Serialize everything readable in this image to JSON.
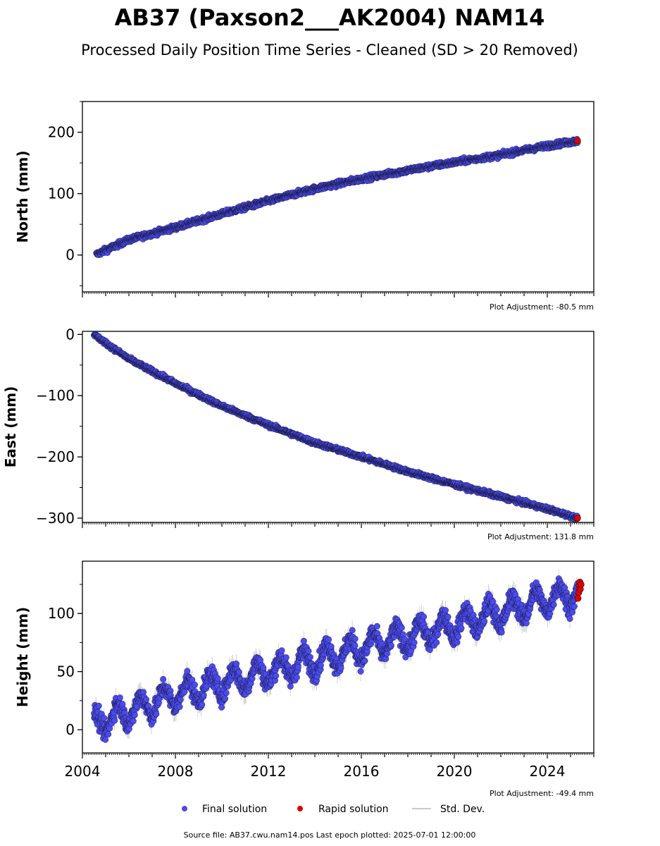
{
  "title": "AB37 (Paxson2___AK2004) NAM14",
  "subtitle": "Processed Daily Position Time Series - Cleaned (SD > 20 Removed)",
  "colors": {
    "final": "#4b4bef",
    "final_edge": "#1a1a40",
    "rapid": "#e00000",
    "stddev": "#c8c8c8",
    "axis": "#000000"
  },
  "legend": {
    "final": "Final solution",
    "rapid": "Rapid solution",
    "stddev": "Std. Dev."
  },
  "footer": "Source file: AB37.cwu.nam14.pos  Last epoch plotted: 2025-07-01 12:00:00",
  "chart_data": [
    {
      "type": "scatter",
      "ylabel": "North (mm)",
      "adjustment": "Plot Adjustment: -80.5 mm",
      "xlim": [
        2004.0,
        2026.0
      ],
      "ylim": [
        -60,
        250
      ],
      "yticks": [
        0,
        100,
        200
      ],
      "ytick_labels": [
        "0",
        "100",
        "200"
      ],
      "final_trend": [
        [
          2004.6,
          1
        ],
        [
          2006,
          25
        ],
        [
          2008,
          45
        ],
        [
          2010,
          67
        ],
        [
          2012,
          88
        ],
        [
          2014,
          108
        ],
        [
          2016,
          124
        ],
        [
          2018,
          138
        ],
        [
          2020,
          151
        ],
        [
          2022,
          163
        ],
        [
          2024,
          178
        ],
        [
          2025.3,
          186
        ]
      ],
      "noise_mm": 3,
      "rapid": {
        "x": [
          2025.3
        ],
        "y": [
          186
        ]
      }
    },
    {
      "type": "scatter",
      "ylabel": "East (mm)",
      "adjustment": "Plot Adjustment: 131.8 mm",
      "xlim": [
        2004.0,
        2026.0
      ],
      "ylim": [
        -307,
        5
      ],
      "yticks": [
        -300,
        -200,
        -100,
        0
      ],
      "ytick_labels": [
        "−300",
        "−200",
        "−100",
        "0"
      ],
      "final_trend": [
        [
          2004.5,
          0
        ],
        [
          2005,
          -14
        ],
        [
          2006,
          -40
        ],
        [
          2008,
          -80
        ],
        [
          2010,
          -117
        ],
        [
          2012,
          -148
        ],
        [
          2014,
          -177
        ],
        [
          2016,
          -200
        ],
        [
          2018,
          -224
        ],
        [
          2020,
          -245
        ],
        [
          2022,
          -265
        ],
        [
          2024,
          -285
        ],
        [
          2025.3,
          -300
        ]
      ],
      "noise_mm": 2.5,
      "rapid": {
        "x": [
          2025.3
        ],
        "y": [
          -300
        ]
      }
    },
    {
      "type": "scatter",
      "ylabel": "Height (mm)",
      "adjustment": "Plot Adjustment: -49.4 mm",
      "xlim": [
        2004.0,
        2026.0
      ],
      "ylim": [
        -20,
        145
      ],
      "yticks": [
        0,
        50,
        100
      ],
      "ytick_labels": [
        "0",
        "50",
        "100"
      ],
      "xticks": [
        2004,
        2008,
        2012,
        2016,
        2020,
        2024
      ],
      "xtick_labels": [
        "2004",
        "2008",
        "2012",
        "2016",
        "2020",
        "2024"
      ],
      "final_trend": [
        [
          2004.5,
          5
        ],
        [
          2008,
          30
        ],
        [
          2012,
          50
        ],
        [
          2016,
          70
        ],
        [
          2020,
          90
        ],
        [
          2024,
          112
        ],
        [
          2025.3,
          118
        ]
      ],
      "seasonal_amplitude_mm": 10,
      "noise_mm": 6,
      "rapid": {
        "x": [
          2025.32,
          2025.35,
          2025.37,
          2025.4,
          2025.42,
          2025.45
        ],
        "y": [
          113,
          118,
          124,
          127,
          121,
          125
        ]
      }
    }
  ]
}
